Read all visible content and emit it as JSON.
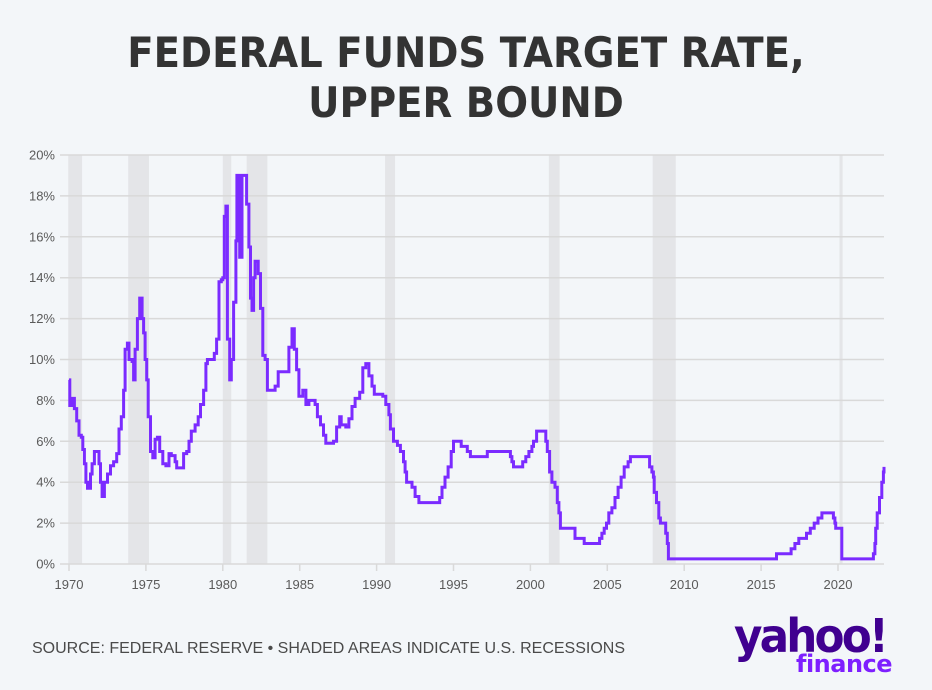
{
  "title_lines": [
    "FEDERAL FUNDS TARGET RATE,",
    "UPPER BOUND"
  ],
  "footer": {
    "source": "SOURCE: FEDERAL RESERVE • SHADED AREAS INDICATE U.S. RECESSIONS",
    "logo_main": "yahoo!",
    "logo_sub": "finance"
  },
  "colors": {
    "line": "#7b2bff",
    "recession": "#e4e5e8",
    "grid": "#d9d9d9",
    "title": "#333333",
    "logo_main": "#400090",
    "logo_sub": "#7e1fff"
  },
  "chart_data": {
    "type": "line",
    "title": "FEDERAL FUNDS TARGET RATE, UPPER BOUND",
    "xlabel": "",
    "ylabel": "",
    "xlim": [
      1970,
      2023
    ],
    "ylim": [
      0,
      20
    ],
    "grid": "horizontal",
    "legend": "none",
    "x_ticks": [
      1970,
      1975,
      1980,
      1985,
      1990,
      1995,
      2000,
      2005,
      2010,
      2015,
      2020
    ],
    "x_tick_labels": [
      "1970",
      "1975",
      "1980",
      "1985",
      "1990",
      "1995",
      "2000",
      "2005",
      "2010",
      "2015",
      "2020"
    ],
    "y_ticks": [
      0,
      2,
      4,
      6,
      8,
      10,
      12,
      14,
      16,
      18,
      20
    ],
    "y_tick_labels": [
      "0%",
      "2%",
      "4%",
      "6%",
      "8%",
      "10%",
      "12%",
      "14%",
      "16%",
      "18%",
      "20%"
    ],
    "recessions": [
      [
        1969.95,
        1970.85
      ],
      [
        1973.85,
        1975.2
      ],
      [
        1980.0,
        1980.55
      ],
      [
        1981.55,
        1982.9
      ],
      [
        1990.55,
        1991.2
      ],
      [
        2001.2,
        2001.9
      ],
      [
        2007.95,
        2009.45
      ],
      [
        2020.1,
        2020.3
      ]
    ],
    "series": [
      {
        "name": "Federal Funds Target Rate, Upper Bound",
        "points": [
          [
            1970.0,
            9.0
          ],
          [
            1970.05,
            7.75
          ],
          [
            1970.2,
            8.1
          ],
          [
            1970.35,
            7.6
          ],
          [
            1970.5,
            7.0
          ],
          [
            1970.65,
            6.3
          ],
          [
            1970.8,
            6.2
          ],
          [
            1970.9,
            5.6
          ],
          [
            1971.0,
            4.9
          ],
          [
            1971.1,
            4.0
          ],
          [
            1971.2,
            3.7
          ],
          [
            1971.4,
            4.4
          ],
          [
            1971.5,
            4.9
          ],
          [
            1971.65,
            5.5
          ],
          [
            1971.8,
            5.5
          ],
          [
            1971.95,
            4.9
          ],
          [
            1972.05,
            4.0
          ],
          [
            1972.15,
            3.3
          ],
          [
            1972.3,
            4.0
          ],
          [
            1972.5,
            4.4
          ],
          [
            1972.7,
            4.8
          ],
          [
            1972.9,
            5.0
          ],
          [
            1973.1,
            5.4
          ],
          [
            1973.25,
            6.6
          ],
          [
            1973.4,
            7.2
          ],
          [
            1973.55,
            8.5
          ],
          [
            1973.65,
            10.5
          ],
          [
            1973.8,
            10.8
          ],
          [
            1973.9,
            10.0
          ],
          [
            1974.1,
            9.9
          ],
          [
            1974.2,
            9.0
          ],
          [
            1974.3,
            10.5
          ],
          [
            1974.45,
            12.0
          ],
          [
            1974.6,
            13.0
          ],
          [
            1974.75,
            12.0
          ],
          [
            1974.85,
            11.3
          ],
          [
            1974.95,
            10.0
          ],
          [
            1975.05,
            9.0
          ],
          [
            1975.15,
            7.2
          ],
          [
            1975.3,
            5.5
          ],
          [
            1975.45,
            5.2
          ],
          [
            1975.6,
            6.1
          ],
          [
            1975.75,
            6.2
          ],
          [
            1975.9,
            5.5
          ],
          [
            1976.1,
            4.9
          ],
          [
            1976.3,
            4.8
          ],
          [
            1976.5,
            5.4
          ],
          [
            1976.65,
            5.3
          ],
          [
            1976.9,
            5.0
          ],
          [
            1977.0,
            4.7
          ],
          [
            1977.3,
            4.7
          ],
          [
            1977.45,
            5.4
          ],
          [
            1977.65,
            5.5
          ],
          [
            1977.8,
            6.0
          ],
          [
            1977.95,
            6.5
          ],
          [
            1978.2,
            6.8
          ],
          [
            1978.4,
            7.2
          ],
          [
            1978.55,
            7.8
          ],
          [
            1978.75,
            8.5
          ],
          [
            1978.9,
            9.8
          ],
          [
            1979.0,
            10.0
          ],
          [
            1979.45,
            10.3
          ],
          [
            1979.6,
            11.0
          ],
          [
            1979.75,
            13.8
          ],
          [
            1979.9,
            13.9
          ],
          [
            1980.0,
            14.0
          ],
          [
            1980.1,
            17.0
          ],
          [
            1980.2,
            17.5
          ],
          [
            1980.3,
            11.0
          ],
          [
            1980.45,
            9.0
          ],
          [
            1980.55,
            10.0
          ],
          [
            1980.7,
            12.8
          ],
          [
            1980.85,
            15.8
          ],
          [
            1980.92,
            19.0
          ],
          [
            1981.05,
            19.0
          ],
          [
            1981.1,
            15.0
          ],
          [
            1981.25,
            19.0
          ],
          [
            1981.5,
            19.0
          ],
          [
            1981.55,
            17.6
          ],
          [
            1981.7,
            15.5
          ],
          [
            1981.8,
            13.0
          ],
          [
            1981.9,
            12.4
          ],
          [
            1982.0,
            14.0
          ],
          [
            1982.1,
            14.8
          ],
          [
            1982.3,
            14.2
          ],
          [
            1982.45,
            12.5
          ],
          [
            1982.6,
            10.2
          ],
          [
            1982.75,
            10.0
          ],
          [
            1982.9,
            8.5
          ],
          [
            1983.2,
            8.5
          ],
          [
            1983.4,
            8.7
          ],
          [
            1983.6,
            9.4
          ],
          [
            1984.0,
            9.4
          ],
          [
            1984.3,
            10.6
          ],
          [
            1984.5,
            11.5
          ],
          [
            1984.65,
            10.5
          ],
          [
            1984.8,
            9.5
          ],
          [
            1984.95,
            8.2
          ],
          [
            1985.2,
            8.5
          ],
          [
            1985.4,
            7.8
          ],
          [
            1985.6,
            8.0
          ],
          [
            1986.0,
            7.8
          ],
          [
            1986.15,
            7.2
          ],
          [
            1986.35,
            6.8
          ],
          [
            1986.55,
            6.3
          ],
          [
            1986.7,
            5.9
          ],
          [
            1987.2,
            6.0
          ],
          [
            1987.4,
            6.7
          ],
          [
            1987.6,
            7.2
          ],
          [
            1987.7,
            6.8
          ],
          [
            1988.0,
            6.7
          ],
          [
            1988.2,
            7.1
          ],
          [
            1988.4,
            7.7
          ],
          [
            1988.6,
            8.1
          ],
          [
            1988.9,
            8.4
          ],
          [
            1989.1,
            9.6
          ],
          [
            1989.3,
            9.8
          ],
          [
            1989.5,
            9.2
          ],
          [
            1989.7,
            8.7
          ],
          [
            1989.85,
            8.3
          ],
          [
            1990.4,
            8.2
          ],
          [
            1990.6,
            7.8
          ],
          [
            1990.8,
            7.3
          ],
          [
            1990.9,
            6.6
          ],
          [
            1991.1,
            6.0
          ],
          [
            1991.35,
            5.8
          ],
          [
            1991.55,
            5.5
          ],
          [
            1991.75,
            5.0
          ],
          [
            1991.85,
            4.5
          ],
          [
            1991.95,
            4.0
          ],
          [
            1992.3,
            3.75
          ],
          [
            1992.5,
            3.3
          ],
          [
            1992.75,
            3.0
          ],
          [
            1993.0,
            3.0
          ],
          [
            1994.0,
            3.0
          ],
          [
            1994.1,
            3.25
          ],
          [
            1994.25,
            3.75
          ],
          [
            1994.45,
            4.25
          ],
          [
            1994.65,
            4.75
          ],
          [
            1994.85,
            5.5
          ],
          [
            1995.0,
            6.0
          ],
          [
            1995.5,
            5.75
          ],
          [
            1995.9,
            5.5
          ],
          [
            1996.1,
            5.25
          ],
          [
            1997.2,
            5.5
          ],
          [
            1998.7,
            5.25
          ],
          [
            1998.8,
            5.0
          ],
          [
            1998.9,
            4.75
          ],
          [
            1999.5,
            5.0
          ],
          [
            1999.7,
            5.25
          ],
          [
            1999.9,
            5.5
          ],
          [
            2000.1,
            5.75
          ],
          [
            2000.2,
            6.0
          ],
          [
            2000.4,
            6.5
          ],
          [
            2001.0,
            6.0
          ],
          [
            2001.1,
            5.5
          ],
          [
            2001.25,
            4.5
          ],
          [
            2001.4,
            4.0
          ],
          [
            2001.6,
            3.75
          ],
          [
            2001.75,
            3.0
          ],
          [
            2001.85,
            2.5
          ],
          [
            2001.95,
            1.75
          ],
          [
            2002.9,
            1.25
          ],
          [
            2003.5,
            1.0
          ],
          [
            2004.5,
            1.25
          ],
          [
            2004.65,
            1.5
          ],
          [
            2004.8,
            1.75
          ],
          [
            2004.95,
            2.0
          ],
          [
            2005.1,
            2.5
          ],
          [
            2005.3,
            2.75
          ],
          [
            2005.5,
            3.25
          ],
          [
            2005.7,
            3.75
          ],
          [
            2005.9,
            4.25
          ],
          [
            2006.1,
            4.75
          ],
          [
            2006.35,
            5.0
          ],
          [
            2006.5,
            5.25
          ],
          [
            2007.65,
            5.25
          ],
          [
            2007.75,
            4.75
          ],
          [
            2007.9,
            4.5
          ],
          [
            2008.0,
            4.25
          ],
          [
            2008.05,
            3.5
          ],
          [
            2008.2,
            3.0
          ],
          [
            2008.35,
            2.25
          ],
          [
            2008.45,
            2.0
          ],
          [
            2008.8,
            1.5
          ],
          [
            2008.9,
            1.0
          ],
          [
            2008.97,
            0.25
          ],
          [
            2015.95,
            0.25
          ],
          [
            2016.0,
            0.5
          ],
          [
            2016.95,
            0.75
          ],
          [
            2017.2,
            1.0
          ],
          [
            2017.45,
            1.25
          ],
          [
            2017.95,
            1.5
          ],
          [
            2018.2,
            1.75
          ],
          [
            2018.45,
            2.0
          ],
          [
            2018.7,
            2.25
          ],
          [
            2018.95,
            2.5
          ],
          [
            2019.55,
            2.5
          ],
          [
            2019.7,
            2.25
          ],
          [
            2019.8,
            2.0
          ],
          [
            2019.85,
            1.75
          ],
          [
            2020.2,
            1.75
          ],
          [
            2020.25,
            0.25
          ],
          [
            2022.2,
            0.25
          ],
          [
            2022.3,
            0.5
          ],
          [
            2022.4,
            1.0
          ],
          [
            2022.45,
            1.75
          ],
          [
            2022.55,
            2.5
          ],
          [
            2022.7,
            3.25
          ],
          [
            2022.85,
            4.0
          ],
          [
            2022.95,
            4.5
          ],
          [
            2023.05,
            4.75
          ]
        ]
      }
    ]
  }
}
